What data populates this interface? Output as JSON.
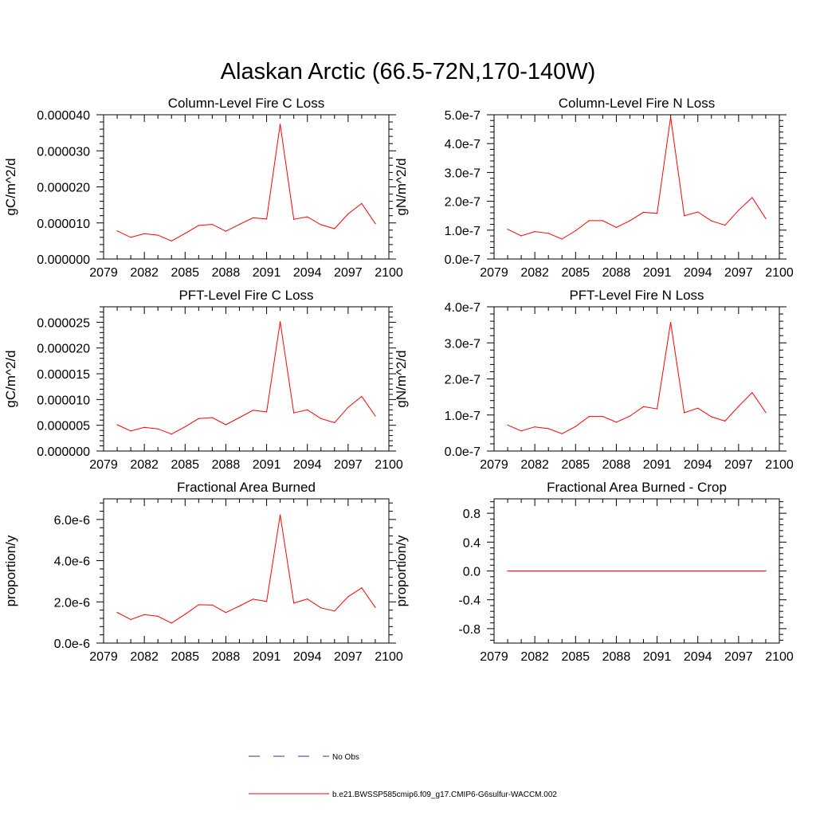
{
  "figure": {
    "title": "Alaskan Arctic (66.5-72N,170-140W)"
  },
  "chart_data": [
    {
      "type": "line",
      "title": "Column-Level Fire C Loss",
      "ylabel": "gC/m^2/d",
      "xlim": [
        2079,
        2100
      ],
      "ylim": [
        0,
        4e-05
      ],
      "xticks": [
        2079,
        2082,
        2085,
        2088,
        2091,
        2094,
        2097,
        2100
      ],
      "yticks": [
        0,
        1e-05,
        2e-05,
        3e-05,
        4e-05
      ],
      "ytick_labels": [
        "0.000000",
        "0.000010",
        "0.000020",
        "0.000030",
        "0.000040"
      ],
      "series": [
        {
          "color": "#ff0000",
          "x": [
            2080,
            2081,
            2082,
            2083,
            2084,
            2085,
            2086,
            2087,
            2088,
            2089,
            2090,
            2091,
            2092,
            2093,
            2094,
            2095,
            2096,
            2097,
            2098,
            2099
          ],
          "values": [
            7.8e-06,
            6e-06,
            7e-06,
            6.6e-06,
            5e-06,
            7.1e-06,
            9.3e-06,
            9.6e-06,
            7.7e-06,
            9.6e-06,
            1.14e-05,
            1.11e-05,
            3.74e-05,
            1.1e-05,
            1.17e-05,
            9.5e-06,
            8.4e-06,
            1.25e-05,
            1.54e-05,
            9.8e-06
          ]
        }
      ]
    },
    {
      "type": "line",
      "title": "Column-Level Fire N Loss",
      "ylabel": "gN/m^2/d",
      "xlim": [
        2079,
        2100
      ],
      "ylim": [
        0,
        5e-07
      ],
      "xticks": [
        2079,
        2082,
        2085,
        2088,
        2091,
        2094,
        2097,
        2100
      ],
      "yticks": [
        0,
        1e-07,
        2e-07,
        3e-07,
        4e-07,
        5e-07
      ],
      "ytick_labels": [
        "0.0e-7",
        "1.0e-7",
        "2.0e-7",
        "3.0e-7",
        "4.0e-7",
        "5.0e-7"
      ],
      "series": [
        {
          "color": "#ff0000",
          "x": [
            2080,
            2081,
            2082,
            2083,
            2084,
            2085,
            2086,
            2087,
            2088,
            2089,
            2090,
            2091,
            2092,
            2093,
            2094,
            2095,
            2096,
            2097,
            2098,
            2099
          ],
          "values": [
            1.03e-07,
            8e-08,
            9.5e-08,
            8.9e-08,
            6.9e-08,
            9.8e-08,
            1.33e-07,
            1.33e-07,
            1.09e-07,
            1.33e-07,
            1.62e-07,
            1.58e-07,
            4.92e-07,
            1.5e-07,
            1.63e-07,
            1.32e-07,
            1.17e-07,
            1.69e-07,
            2.13e-07,
            1.4e-07
          ]
        }
      ]
    },
    {
      "type": "line",
      "title": "PFT-Level Fire C Loss",
      "ylabel": "gC/m^2/d",
      "xlim": [
        2079,
        2100
      ],
      "ylim": [
        0,
        2.8e-05
      ],
      "xticks": [
        2079,
        2082,
        2085,
        2088,
        2091,
        2094,
        2097,
        2100
      ],
      "yticks": [
        0,
        5e-06,
        1e-05,
        1.5e-05,
        2e-05,
        2.5e-05
      ],
      "ytick_labels": [
        "0.000000",
        "0.000005",
        "0.000010",
        "0.000015",
        "0.000020",
        "0.000025"
      ],
      "series": [
        {
          "color": "#ff0000",
          "x": [
            2080,
            2081,
            2082,
            2083,
            2084,
            2085,
            2086,
            2087,
            2088,
            2089,
            2090,
            2091,
            2092,
            2093,
            2094,
            2095,
            2096,
            2097,
            2098,
            2099
          ],
          "values": [
            5.1e-06,
            3.9e-06,
            4.6e-06,
            4.3e-06,
            3.3e-06,
            4.7e-06,
            6.3e-06,
            6.5e-06,
            5.1e-06,
            6.5e-06,
            7.9e-06,
            7.6e-06,
            2.51e-05,
            7.4e-06,
            8e-06,
            6.3e-06,
            5.5e-06,
            8.5e-06,
            1.06e-05,
            6.8e-06
          ]
        }
      ]
    },
    {
      "type": "line",
      "title": "PFT-Level Fire N Loss",
      "ylabel": "gN/m^2/d",
      "xlim": [
        2079,
        2100
      ],
      "ylim": [
        0,
        4e-07
      ],
      "xticks": [
        2079,
        2082,
        2085,
        2088,
        2091,
        2094,
        2097,
        2100
      ],
      "yticks": [
        0,
        1e-07,
        2e-07,
        3e-07,
        4e-07
      ],
      "ytick_labels": [
        "0.0e-7",
        "1.0e-7",
        "2.0e-7",
        "3.0e-7",
        "4.0e-7"
      ],
      "series": [
        {
          "color": "#ff0000",
          "x": [
            2080,
            2081,
            2082,
            2083,
            2084,
            2085,
            2086,
            2087,
            2088,
            2089,
            2090,
            2091,
            2092,
            2093,
            2094,
            2095,
            2096,
            2097,
            2098,
            2099
          ],
          "values": [
            7.2e-08,
            5.6e-08,
            6.7e-08,
            6.2e-08,
            4.8e-08,
            6.8e-08,
            9.6e-08,
            9.6e-08,
            8e-08,
            9.7e-08,
            1.23e-07,
            1.17e-07,
            3.57e-07,
            1.06e-07,
            1.19e-07,
            9.5e-08,
            8.3e-08,
            1.24e-07,
            1.62e-07,
            1.07e-07
          ]
        }
      ]
    },
    {
      "type": "line",
      "title": "Fractional Area Burned",
      "ylabel": "proportion/y",
      "xlim": [
        2079,
        2100
      ],
      "ylim": [
        0,
        7e-06
      ],
      "xticks": [
        2079,
        2082,
        2085,
        2088,
        2091,
        2094,
        2097,
        2100
      ],
      "yticks": [
        0,
        2e-06,
        4e-06,
        6e-06
      ],
      "ytick_labels": [
        "0.0e-6",
        "2.0e-6",
        "4.0e-6",
        "6.0e-6"
      ],
      "series": [
        {
          "color": "#ff0000",
          "x": [
            2080,
            2081,
            2082,
            2083,
            2084,
            2085,
            2086,
            2087,
            2088,
            2089,
            2090,
            2091,
            2092,
            2093,
            2094,
            2095,
            2096,
            2097,
            2098,
            2099
          ],
          "values": [
            1.49e-06,
            1.14e-06,
            1.38e-06,
            1.3e-06,
            9.7e-07,
            1.4e-06,
            1.86e-06,
            1.85e-06,
            1.48e-06,
            1.8e-06,
            2.13e-06,
            2.02e-06,
            6.22e-06,
            1.94e-06,
            2.14e-06,
            1.71e-06,
            1.56e-06,
            2.25e-06,
            2.68e-06,
            1.73e-06
          ]
        }
      ]
    },
    {
      "type": "line",
      "title": "Fractional Area Burned - Crop",
      "ylabel": "proportion/y",
      "xlim": [
        2079,
        2100
      ],
      "ylim": [
        -1,
        1
      ],
      "xticks": [
        2079,
        2082,
        2085,
        2088,
        2091,
        2094,
        2097,
        2100
      ],
      "yticks": [
        -0.8,
        -0.4,
        0,
        0.4,
        0.8
      ],
      "ytick_labels": [
        "-0.8",
        "-0.4",
        "0.0",
        "0.4",
        "0.8"
      ],
      "series": [
        {
          "color": "#ff0000",
          "x": [
            2080,
            2081,
            2082,
            2083,
            2084,
            2085,
            2086,
            2087,
            2088,
            2089,
            2090,
            2091,
            2092,
            2093,
            2094,
            2095,
            2096,
            2097,
            2098,
            2099
          ],
          "values": [
            0,
            0,
            0,
            0,
            0,
            0,
            0,
            0,
            0,
            0,
            0,
            0,
            0,
            0,
            0,
            0,
            0,
            0,
            0,
            0
          ]
        }
      ]
    }
  ],
  "legend": {
    "placement": "bottom-center",
    "entries": [
      {
        "label": "No Obs",
        "color": "#3333aa",
        "style": "dashed"
      },
      {
        "label": "b.e21.BWSSP585cmip6.f09_g17.CMIP6-G6sulfur-WACCM.002",
        "color": "#ff0000",
        "style": "solid"
      }
    ]
  }
}
